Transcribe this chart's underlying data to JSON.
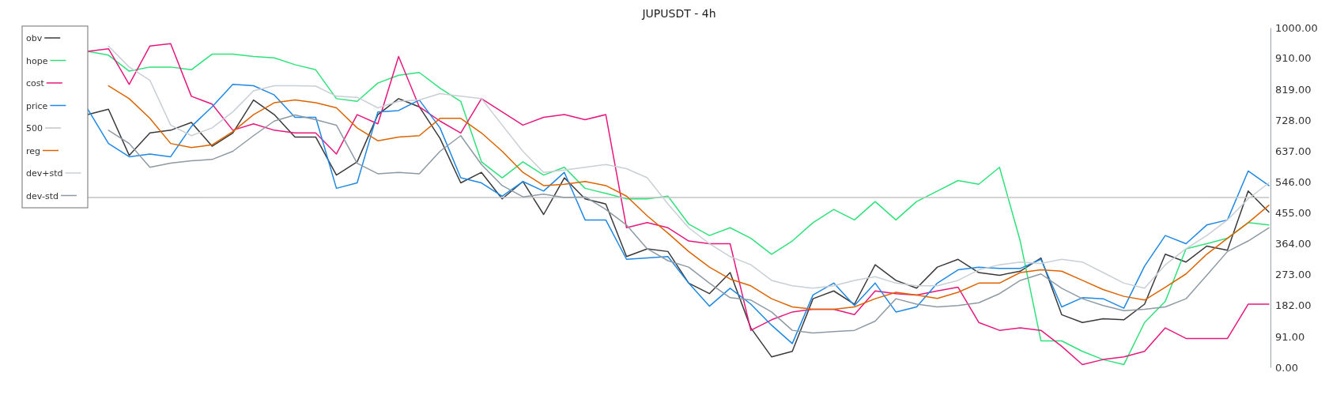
{
  "chart_data": {
    "type": "line",
    "title": "JUPUSDT - 4h",
    "categories": [
      null,
      null,
      null,
      null,
      null,
      null,
      null,
      null,
      null,
      null,
      null,
      null,
      null,
      null,
      null,
      null,
      null,
      null,
      null,
      null,
      null,
      null,
      null,
      null,
      null,
      null,
      null,
      null,
      null,
      null,
      null,
      null,
      null,
      null,
      null,
      null,
      null,
      null,
      null,
      null,
      null,
      null,
      null,
      null,
      null,
      null,
      null,
      null,
      null,
      null,
      null,
      null,
      null,
      null,
      null,
      null,
      null,
      null
    ],
    "ylim": [
      0,
      1000
    ],
    "yticks": [
      {
        "value": 0,
        "label": "0.00"
      },
      {
        "value": 91,
        "label": "91.00"
      },
      {
        "value": 182,
        "label": "182.00"
      },
      {
        "value": 273,
        "label": "273.00"
      },
      {
        "value": 364,
        "label": "364.00"
      },
      {
        "value": 455,
        "label": "455.00"
      },
      {
        "value": 546,
        "label": "546.00"
      },
      {
        "value": 637,
        "label": "637.00"
      },
      {
        "value": 728,
        "label": "728.00"
      },
      {
        "value": 819,
        "label": "819.00"
      },
      {
        "value": 910,
        "label": "910.00"
      },
      {
        "value": 1000,
        "label": "1000.00"
      }
    ],
    "grid": false,
    "legend": "left",
    "marker": "none",
    "series": [
      {
        "name": "obv",
        "color": "#3a3a3a",
        "values": [
          744,
          760,
          624,
          690,
          698,
          721,
          651,
          690,
          787,
          744,
          678,
          678,
          566,
          605,
          744,
          791,
          767,
          674,
          543,
          574,
          496,
          547,
          450,
          558,
          496,
          481,
          326,
          349,
          341,
          248,
          217,
          279,
          116,
          31,
          47,
          202,
          225,
          186,
          302,
          256,
          233,
          295,
          318,
          279,
          271,
          283,
          322,
          155,
          132,
          143,
          140,
          186,
          333,
          310,
          357,
          345,
          519,
          457
        ]
      },
      {
        "name": "hope",
        "color": "#2ee27a",
        "values": [
          930,
          919,
          872,
          884,
          884,
          876,
          922,
          922,
          915,
          911,
          891,
          876,
          791,
          783,
          837,
          860,
          868,
          822,
          783,
          605,
          558,
          605,
          566,
          589,
          527,
          512,
          496,
          496,
          504,
          422,
          388,
          411,
          380,
          333,
          372,
          426,
          465,
          434,
          488,
          434,
          488,
          519,
          550,
          539,
          589,
          372,
          78,
          78,
          47,
          23,
          8,
          132,
          194,
          349,
          364,
          380,
          426,
          419
        ]
      },
      {
        "name": "cost",
        "color": "#e8177d",
        "values": [
          930,
          938,
          833,
          946,
          953,
          798,
          775,
          698,
          717,
          698,
          690,
          690,
          628,
          744,
          717,
          915,
          767,
          725,
          690,
          791,
          752,
          713,
          736,
          744,
          729,
          744,
          411,
          426,
          411,
          372,
          364,
          364,
          109,
          140,
          163,
          171,
          171,
          155,
          225,
          217,
          213,
          225,
          236,
          132,
          109,
          116,
          109,
          62,
          8,
          23,
          31,
          47,
          116,
          85,
          85,
          85,
          186,
          186
        ]
      },
      {
        "name": "price",
        "color": "#1e88e5",
        "values": [
          760,
          659,
          620,
          628,
          620,
          709,
          767,
          833,
          829,
          802,
          736,
          736,
          527,
          543,
          752,
          756,
          787,
          705,
          558,
          543,
          504,
          547,
          519,
          574,
          434,
          434,
          318,
          322,
          326,
          248,
          180,
          233,
          186,
          124,
          70,
          213,
          248,
          182,
          248,
          163,
          178,
          248,
          287,
          295,
          291,
          291,
          318,
          178,
          205,
          202,
          174,
          298,
          388,
          364,
          419,
          434,
          578,
          535
        ]
      },
      {
        "name": "500",
        "color": "#c4c4c4",
        "values": [
          500,
          500,
          500,
          500,
          500,
          500,
          500,
          500,
          500,
          500,
          500,
          500,
          500,
          500,
          500,
          500,
          500,
          500,
          500,
          500,
          500,
          500,
          500,
          500,
          500,
          500,
          500,
          500,
          500,
          500,
          500,
          500,
          500,
          500,
          500,
          500,
          500,
          500,
          500,
          500,
          500,
          500,
          500,
          500,
          500,
          500,
          500,
          500,
          500,
          500,
          500,
          500,
          500,
          500,
          500,
          500,
          500,
          500
        ]
      },
      {
        "name": "reg",
        "color": "#dd6400",
        "values": [
          null,
          829,
          791,
          733,
          659,
          647,
          655,
          694,
          744,
          779,
          787,
          779,
          764,
          705,
          667,
          678,
          682,
          733,
          733,
          690,
          636,
          574,
          535,
          539,
          547,
          535,
          504,
          446,
          395,
          341,
          295,
          260,
          240,
          202,
          178,
          171,
          171,
          178,
          202,
          221,
          213,
          203,
          221,
          248,
          248,
          279,
          287,
          283,
          256,
          229,
          209,
          198,
          236,
          275,
          333,
          380,
          426,
          477
        ]
      },
      {
        "name": "dev+std",
        "color": "#c9cfd4",
        "values": [
          null,
          946,
          884,
          845,
          713,
          682,
          705,
          752,
          814,
          829,
          829,
          828,
          798,
          795,
          764,
          783,
          787,
          806,
          798,
          791,
          713,
          636,
          574,
          581,
          589,
          597,
          585,
          558,
          481,
          411,
          364,
          326,
          302,
          256,
          240,
          233,
          240,
          256,
          267,
          248,
          240,
          240,
          256,
          287,
          302,
          310,
          306,
          318,
          310,
          279,
          248,
          233,
          302,
          349,
          388,
          434,
          496,
          543
        ]
      },
      {
        "name": "dev-std",
        "color": "#8e9aa3",
        "values": [
          null,
          698,
          659,
          589,
          601,
          608,
          612,
          636,
          682,
          725,
          743,
          729,
          713,
          601,
          570,
          574,
          570,
          636,
          682,
          597,
          535,
          502,
          510,
          500,
          502,
          465,
          419,
          349,
          314,
          295,
          248,
          205,
          198,
          163,
          109,
          101,
          105,
          109,
          136,
          202,
          186,
          178,
          182,
          190,
          217,
          256,
          275,
          233,
          202,
          182,
          167,
          171,
          178,
          202,
          271,
          341,
          372,
          411
        ]
      }
    ]
  }
}
